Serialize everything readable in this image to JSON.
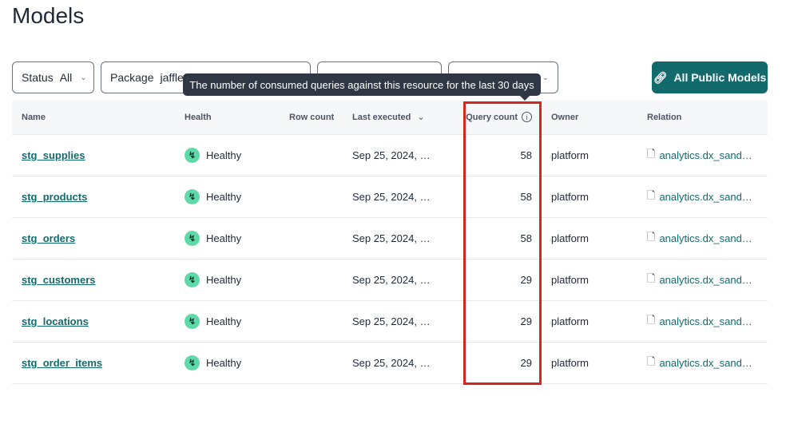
{
  "page_title": "Models",
  "filters": [
    {
      "label": "Status",
      "value": "All"
    },
    {
      "label": "Package",
      "value": "jaffle_"
    },
    {
      "label": "",
      "value": ""
    },
    {
      "label": "",
      "value": ""
    }
  ],
  "all_public_models_label": "All Public Models",
  "tooltip": "The number of consumed queries against this resource for the last 30 days",
  "columns": {
    "name": "Name",
    "health": "Health",
    "row_count": "Row count",
    "last_executed": "Last executed",
    "query_count": "Query count",
    "owner": "Owner",
    "relation": "Relation"
  },
  "rows": [
    {
      "name": "stg_supplies",
      "health": "Healthy",
      "last_executed": "Sep 25, 2024, …",
      "query_count": "58",
      "owner": "platform",
      "relation": "analytics.dx_sand…"
    },
    {
      "name": "stg_products",
      "health": "Healthy",
      "last_executed": "Sep 25, 2024, …",
      "query_count": "58",
      "owner": "platform",
      "relation": "analytics.dx_sand…"
    },
    {
      "name": "stg_orders",
      "health": "Healthy",
      "last_executed": "Sep 25, 2024, …",
      "query_count": "58",
      "owner": "platform",
      "relation": "analytics.dx_sand…"
    },
    {
      "name": "stg_customers",
      "health": "Healthy",
      "last_executed": "Sep 25, 2024, …",
      "query_count": "29",
      "owner": "platform",
      "relation": "analytics.dx_sand…"
    },
    {
      "name": "stg_locations",
      "health": "Healthy",
      "last_executed": "Sep 25, 2024, …",
      "query_count": "29",
      "owner": "platform",
      "relation": "analytics.dx_sand…"
    },
    {
      "name": "stg_order_items",
      "health": "Healthy",
      "last_executed": "Sep 25, 2024, …",
      "query_count": "29",
      "owner": "platform",
      "relation": "analytics.dx_sand…"
    }
  ],
  "colors": {
    "accent": "#136a6d",
    "healthy": "#5fd9a8",
    "highlight": "#d9261c"
  }
}
